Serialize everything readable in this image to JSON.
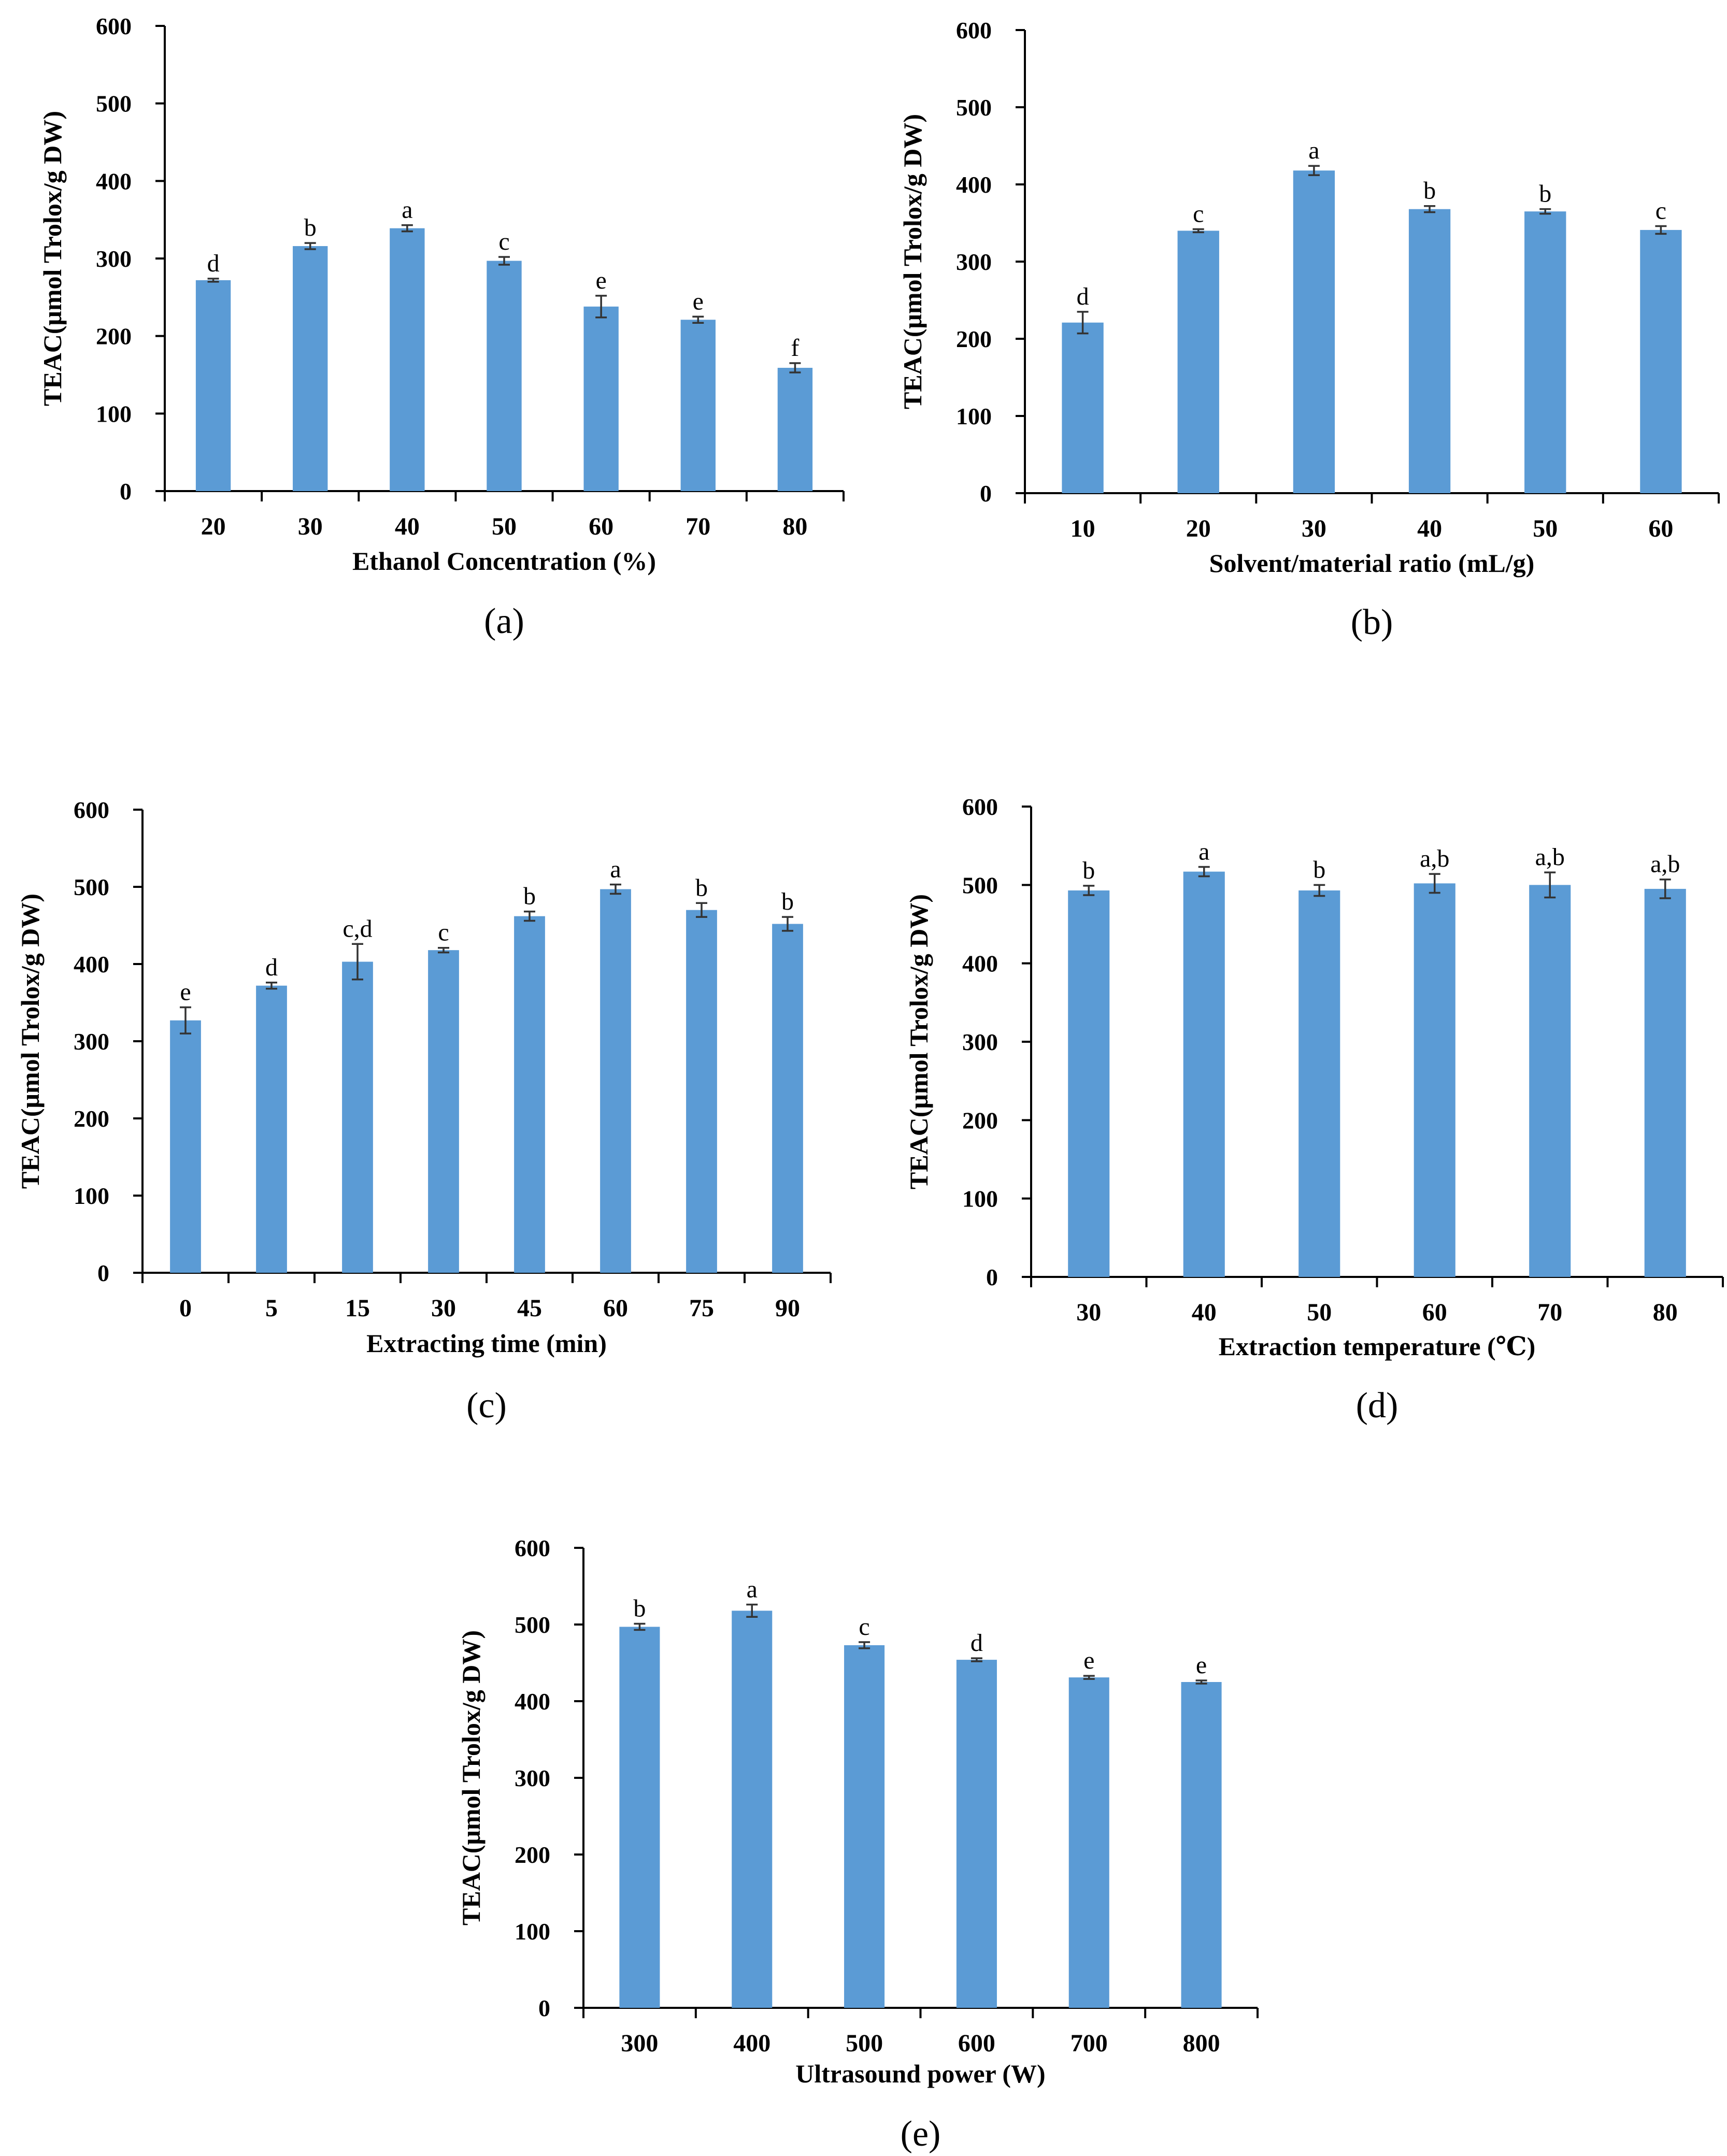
{
  "chart_data": [
    {
      "id": "a",
      "type": "bar",
      "caption": "(a)",
      "ylabel": "TEAC(μmol Trolox/g DW)",
      "xlabel": "Ethanol Concentration (%)",
      "ylim": [
        0,
        600
      ],
      "yticks": [
        "0",
        "100",
        "200",
        "300",
        "400",
        "500",
        "600"
      ],
      "categories": [
        "20",
        "30",
        "40",
        "50",
        "60",
        "70",
        "80"
      ],
      "values": [
        272,
        316,
        339,
        297,
        238,
        221,
        159
      ],
      "errors": [
        2,
        4,
        4,
        5,
        14,
        4,
        6
      ],
      "letters": [
        "d",
        "b",
        "a",
        "c",
        "e",
        "e",
        "f"
      ]
    },
    {
      "id": "b",
      "type": "bar",
      "caption": "(b)",
      "ylabel": "TEAC(μmol Trolox/g DW)",
      "xlabel": "Solvent/material ratio (mL/g)",
      "ylim": [
        0,
        600
      ],
      "yticks": [
        "0",
        "100",
        "200",
        "300",
        "400",
        "500",
        "600"
      ],
      "categories": [
        "10",
        "20",
        "30",
        "40",
        "50",
        "60"
      ],
      "values": [
        221,
        340,
        418,
        368,
        365,
        341
      ],
      "errors": [
        14,
        2,
        6,
        4,
        3,
        5
      ],
      "letters": [
        "d",
        "c",
        "a",
        "b",
        "b",
        "c"
      ]
    },
    {
      "id": "c",
      "type": "bar",
      "caption": "(c)",
      "ylabel": "TEAC(μmol Trolox/g DW)",
      "xlabel": "Extracting time (min)",
      "ylim": [
        0,
        600
      ],
      "yticks": [
        "0",
        "100",
        "200",
        "300",
        "400",
        "500",
        "600"
      ],
      "categories": [
        "0",
        "5",
        "15",
        "30",
        "45",
        "60",
        "75",
        "90"
      ],
      "values": [
        327,
        372,
        403,
        418,
        462,
        497,
        470,
        452
      ],
      "errors": [
        17,
        4,
        23,
        3,
        6,
        6,
        9,
        9
      ],
      "letters": [
        "e",
        "d",
        "c,d",
        "c",
        "b",
        "a",
        "b",
        "b"
      ]
    },
    {
      "id": "d",
      "type": "bar",
      "caption": "(d)",
      "ylabel": "TEAC(μmol Trolox/g DW)",
      "xlabel": "Extraction temperature (℃)",
      "ylim": [
        0,
        600
      ],
      "yticks": [
        "0",
        "100",
        "200",
        "300",
        "400",
        "500",
        "600"
      ],
      "categories": [
        "30",
        "40",
        "50",
        "60",
        "70",
        "80"
      ],
      "values": [
        493,
        517,
        493,
        502,
        500,
        495
      ],
      "errors": [
        6,
        6,
        7,
        12,
        16,
        12
      ],
      "letters": [
        "b",
        "a",
        "b",
        "a,b",
        "a,b",
        "a,b"
      ]
    },
    {
      "id": "e",
      "type": "bar",
      "caption": "(e)",
      "ylabel": "TEAC(μmol Trolox/g DW)",
      "xlabel": "Ultrasound power (W)",
      "ylim": [
        0,
        600
      ],
      "yticks": [
        "0",
        "100",
        "200",
        "300",
        "400",
        "500",
        "600"
      ],
      "categories": [
        "300",
        "400",
        "500",
        "600",
        "700",
        "800"
      ],
      "values": [
        497,
        518,
        473,
        454,
        431,
        425
      ],
      "errors": [
        4,
        8,
        4,
        2,
        2,
        2
      ],
      "letters": [
        "b",
        "a",
        "c",
        "d",
        "e",
        "e"
      ]
    }
  ],
  "colors": {
    "bar": "#5b9bd5",
    "axis": "#000000",
    "errorbar": "#333333"
  }
}
